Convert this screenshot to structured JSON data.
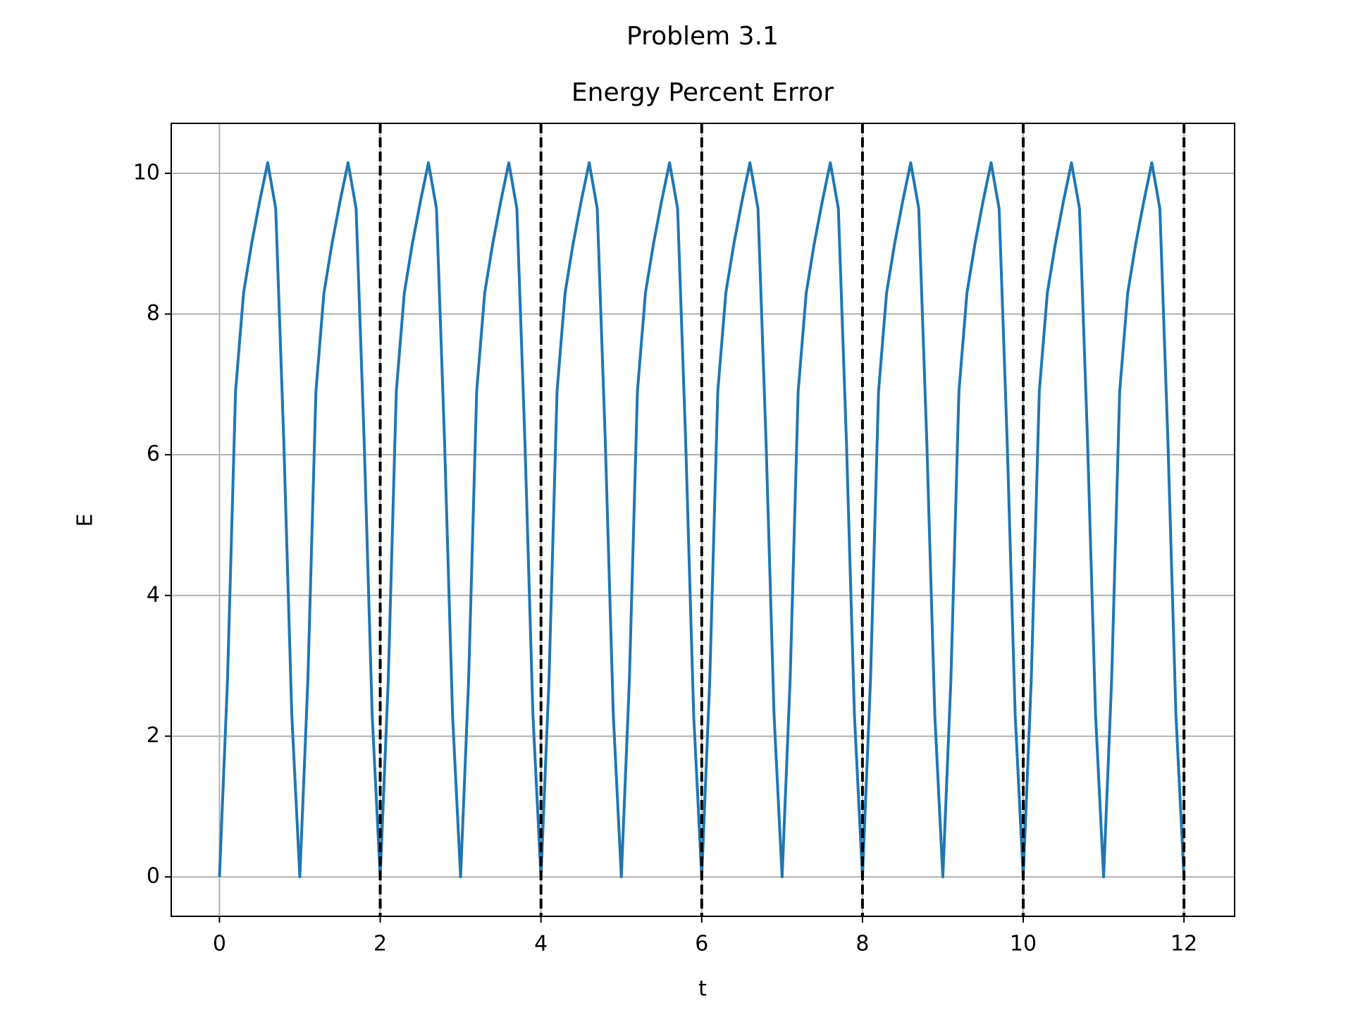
{
  "chart_data": {
    "type": "line",
    "suptitle": "Problem 3.1",
    "title": "Energy Percent Error",
    "xlabel": "t",
    "ylabel": "E",
    "xlim": [
      -0.6,
      12.63
    ],
    "ylim": [
      -0.56,
      10.71
    ],
    "xticks": [
      0,
      2,
      4,
      6,
      8,
      10,
      12
    ],
    "yticks": [
      0,
      2,
      4,
      6,
      8,
      10
    ],
    "grid": true,
    "vlines": [
      2,
      4,
      6,
      8,
      10,
      12
    ],
    "vline_color": "#000000",
    "x": [
      0,
      0.1,
      0.2,
      0.3,
      0.4,
      0.5,
      0.6,
      0.7,
      0.8,
      0.9,
      1,
      1.1,
      1.2,
      1.3,
      1.4,
      1.5,
      1.6,
      1.7,
      1.8,
      1.9,
      2,
      2.1,
      2.2,
      2.3,
      2.4,
      2.5,
      2.6,
      2.7,
      2.8,
      2.9,
      3,
      3.1,
      3.2,
      3.3,
      3.4,
      3.5,
      3.6,
      3.7,
      3.8,
      3.9,
      4,
      4.1,
      4.2,
      4.3,
      4.4,
      4.5,
      4.6,
      4.7,
      4.8,
      4.9,
      5,
      5.1,
      5.2,
      5.3,
      5.4,
      5.5,
      5.6,
      5.7,
      5.8,
      5.9,
      6,
      6.1,
      6.2,
      6.3,
      6.4,
      6.5,
      6.6,
      6.7,
      6.8,
      6.9,
      7,
      7.1,
      7.2,
      7.3,
      7.4,
      7.5,
      7.6,
      7.7,
      7.8,
      7.9,
      8,
      8.1,
      8.2,
      8.3,
      8.4,
      8.5,
      8.6,
      8.7,
      8.8,
      8.9,
      9,
      9.1,
      9.2,
      9.3,
      9.4,
      9.5,
      9.6,
      9.7,
      9.8,
      9.9,
      10,
      10.1,
      10.2,
      10.3,
      10.4,
      10.5,
      10.6,
      10.7,
      10.8,
      10.9,
      11,
      11.1,
      11.2,
      11.3,
      11.4,
      11.5,
      11.6,
      11.7,
      11.8,
      11.9,
      12
    ],
    "series": [
      {
        "color": "#1f77b4",
        "values": [
          0,
          2.8,
          6.9,
          8.3,
          9.0,
          9.6,
          10.15,
          9.5,
          6.2,
          2.3,
          0,
          2.8,
          6.9,
          8.3,
          9.0,
          9.6,
          10.15,
          9.5,
          6.2,
          2.3,
          0,
          2.8,
          6.9,
          8.3,
          9.0,
          9.6,
          10.15,
          9.5,
          6.2,
          2.3,
          0,
          2.8,
          6.9,
          8.3,
          9.0,
          9.6,
          10.15,
          9.5,
          6.2,
          2.3,
          0,
          2.8,
          6.9,
          8.3,
          9.0,
          9.6,
          10.15,
          9.5,
          6.2,
          2.3,
          0,
          2.8,
          6.9,
          8.3,
          9.0,
          9.6,
          10.15,
          9.5,
          6.2,
          2.3,
          0,
          2.8,
          6.9,
          8.3,
          9.0,
          9.6,
          10.15,
          9.5,
          6.2,
          2.3,
          0,
          2.8,
          6.9,
          8.3,
          9.0,
          9.6,
          10.15,
          9.5,
          6.2,
          2.3,
          0,
          2.8,
          6.9,
          8.3,
          9.0,
          9.6,
          10.15,
          9.5,
          6.2,
          2.3,
          0,
          2.8,
          6.9,
          8.3,
          9.0,
          9.6,
          10.15,
          9.5,
          6.2,
          2.3,
          0,
          2.8,
          6.9,
          8.3,
          9.0,
          9.6,
          10.15,
          9.5,
          6.2,
          2.3,
          0,
          2.8,
          6.9,
          8.3,
          9.0,
          9.6,
          10.15,
          9.5,
          6.2,
          2.3,
          0
        ]
      }
    ]
  }
}
